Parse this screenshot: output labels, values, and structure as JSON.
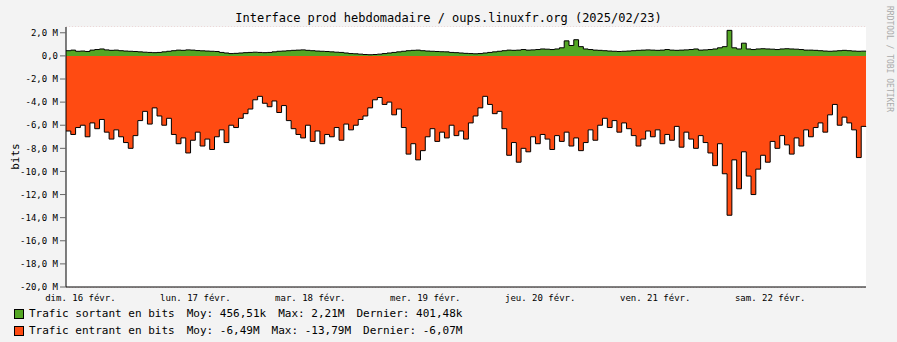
{
  "chart_data": {
    "type": "area",
    "title": "Interface prod hebdomadaire / oups.linuxfr.org (2025/02/23)",
    "y_label": "bits",
    "watermark": "RRDTOOL / TOBI OETIKER",
    "categories": [
      null,
      null,
      null,
      "dim. 16 févr.",
      null,
      null,
      null,
      null,
      null,
      null,
      null,
      null,
      null,
      null,
      null,
      null,
      null,
      null,
      null,
      null,
      null,
      null,
      null,
      null,
      null,
      null,
      null,
      "lun. 17 févr.",
      null,
      null,
      null,
      null,
      null,
      null,
      null,
      null,
      null,
      null,
      null,
      null,
      null,
      null,
      null,
      null,
      null,
      null,
      null,
      null,
      null,
      null,
      null,
      "mar. 18 févr.",
      null,
      null,
      null,
      null,
      null,
      null,
      null,
      null,
      null,
      null,
      null,
      null,
      null,
      null,
      null,
      null,
      null,
      null,
      null,
      null,
      null,
      null,
      null,
      "mer. 19 févr.",
      null,
      null,
      null,
      null,
      null,
      null,
      null,
      null,
      null,
      null,
      null,
      null,
      null,
      null,
      null,
      null,
      null,
      null,
      null,
      null,
      null,
      null,
      null,
      "jeu. 20 févr.",
      null,
      null,
      null,
      null,
      null,
      null,
      null,
      null,
      null,
      null,
      null,
      null,
      null,
      null,
      null,
      null,
      null,
      null,
      null,
      null,
      null,
      null,
      null,
      "ven. 21 févr.",
      null,
      null,
      null,
      null,
      null,
      null,
      null,
      null,
      null,
      null,
      null,
      null,
      null,
      null,
      null,
      null,
      null,
      null,
      null,
      null,
      null,
      null,
      null,
      "sam. 22 févr.",
      null,
      null,
      null,
      null,
      null,
      null,
      null,
      null,
      null,
      null,
      null,
      null,
      null,
      null,
      null,
      null,
      null,
      null,
      null,
      null
    ],
    "series": [
      {
        "name": "Trafic sortant en bits",
        "color": "#54a624",
        "stats": [
          "Moy: 456,51k",
          "Max: 2,21M",
          "Dernier: 401,48k"
        ],
        "values": [
          0.45,
          0.5,
          0.4,
          0.42,
          0.38,
          0.5,
          0.55,
          0.6,
          0.52,
          0.48,
          0.5,
          0.45,
          0.42,
          0.4,
          0.38,
          0.35,
          0.32,
          0.3,
          0.28,
          0.3,
          0.35,
          0.4,
          0.45,
          0.5,
          0.48,
          0.52,
          0.5,
          0.46,
          0.44,
          0.42,
          0.4,
          0.38,
          0.3,
          0.25,
          0.2,
          0.22,
          0.25,
          0.28,
          0.3,
          0.32,
          0.3,
          0.28,
          0.3,
          0.35,
          0.4,
          0.42,
          0.45,
          0.48,
          0.5,
          0.52,
          0.48,
          0.45,
          0.42,
          0.4,
          0.38,
          0.35,
          0.32,
          0.3,
          0.25,
          0.2,
          0.18,
          0.15,
          0.12,
          0.1,
          0.12,
          0.15,
          0.2,
          0.25,
          0.3,
          0.35,
          0.4,
          0.45,
          0.48,
          0.5,
          0.45,
          0.42,
          0.4,
          0.38,
          0.36,
          0.35,
          0.3,
          0.28,
          0.25,
          0.22,
          0.2,
          0.18,
          0.2,
          0.25,
          0.3,
          0.35,
          0.4,
          0.45,
          0.5,
          0.48,
          0.5,
          0.55,
          0.5,
          0.52,
          0.55,
          0.6,
          0.58,
          0.55,
          0.6,
          0.7,
          1.3,
          0.9,
          1.4,
          0.8,
          0.6,
          0.55,
          0.5,
          0.48,
          0.45,
          0.42,
          0.4,
          0.38,
          0.4,
          0.42,
          0.45,
          0.48,
          0.5,
          0.52,
          0.5,
          0.48,
          0.5,
          0.55,
          0.5,
          0.48,
          0.5,
          0.52,
          0.55,
          0.6,
          0.5,
          0.52,
          0.55,
          0.6,
          0.7,
          0.8,
          2.21,
          0.7,
          0.6,
          1.1,
          0.6,
          0.55,
          0.6,
          0.62,
          0.6,
          0.58,
          0.55,
          0.6,
          0.62,
          0.6,
          0.58,
          0.55,
          0.5,
          0.5,
          0.48,
          0.45,
          0.42,
          0.4,
          0.42,
          0.45,
          0.48,
          0.45,
          0.42,
          0.4,
          0.41,
          0.40148
        ]
      },
      {
        "name": "Trafic entrant en bits",
        "color": "#ff4b12",
        "stats": [
          "Moy: -6,49M",
          "Max: -13,79M",
          "Dernier: -6,07M"
        ],
        "values": [
          -6.5,
          -6.8,
          -6.2,
          -6.0,
          -7.0,
          -5.8,
          -6.3,
          -5.5,
          -6.6,
          -7.2,
          -6.4,
          -7.0,
          -7.5,
          -8.0,
          -6.9,
          -5.6,
          -4.8,
          -5.9,
          -4.5,
          -5.2,
          -6.0,
          -5.4,
          -6.8,
          -7.6,
          -7.1,
          -8.4,
          -7.3,
          -6.6,
          -7.8,
          -7.2,
          -8.1,
          -7.0,
          -6.4,
          -7.5,
          -6.0,
          -6.2,
          -5.4,
          -5.0,
          -4.6,
          -3.8,
          -3.5,
          -4.1,
          -4.4,
          -3.9,
          -4.9,
          -4.3,
          -5.6,
          -6.3,
          -6.8,
          -7.1,
          -6.0,
          -7.4,
          -6.5,
          -7.6,
          -6.8,
          -7.0,
          -6.2,
          -7.3,
          -5.9,
          -6.4,
          -6.0,
          -5.5,
          -5.2,
          -4.5,
          -3.8,
          -3.6,
          -4.2,
          -4.0,
          -5.1,
          -4.6,
          -6.2,
          -8.5,
          -7.6,
          -9.0,
          -8.2,
          -7.0,
          -6.3,
          -7.4,
          -6.6,
          -7.1,
          -6.0,
          -6.9,
          -6.5,
          -7.2,
          -5.8,
          -5.2,
          -4.5,
          -3.5,
          -4.2,
          -5.0,
          -4.8,
          -6.3,
          -8.6,
          -7.5,
          -9.2,
          -8.0,
          -8.3,
          -7.0,
          -7.6,
          -6.8,
          -7.2,
          -8.1,
          -6.9,
          -7.4,
          -6.6,
          -7.8,
          -7.1,
          -8.2,
          -7.5,
          -6.4,
          -7.3,
          -6.0,
          -5.4,
          -6.2,
          -5.6,
          -6.6,
          -5.8,
          -6.3,
          -6.9,
          -7.8,
          -7.2,
          -6.5,
          -7.0,
          -6.4,
          -7.6,
          -6.8,
          -7.3,
          -6.1,
          -7.9,
          -6.6,
          -7.2,
          -8.0,
          -6.9,
          -7.5,
          -8.4,
          -9.5,
          -7.6,
          -10.2,
          -13.79,
          -9.0,
          -11.5,
          -8.3,
          -10.4,
          -12.0,
          -9.8,
          -8.6,
          -9.2,
          -7.4,
          -8.0,
          -6.9,
          -7.7,
          -8.5,
          -7.1,
          -7.8,
          -6.4,
          -7.0,
          -6.2,
          -5.8,
          -6.6,
          -5.1,
          -4.2,
          -6.0,
          -5.3,
          -5.8,
          -6.4,
          -8.8,
          -6.1,
          -6.07
        ]
      }
    ],
    "ylim": [
      -20,
      2.5
    ],
    "yticks": [
      {
        "value": -20,
        "label": "-20,0 M"
      },
      {
        "value": -18,
        "label": "-18,0 M"
      },
      {
        "value": -16,
        "label": "-16,0 M"
      },
      {
        "value": -14,
        "label": "-14,0 M"
      },
      {
        "value": -12,
        "label": "-12,0 M"
      },
      {
        "value": -10,
        "label": "-10,0 M"
      },
      {
        "value": -8,
        "label": "-8,0 M"
      },
      {
        "value": -6,
        "label": "-6,0 M"
      },
      {
        "value": -4,
        "label": "-4,0 M"
      },
      {
        "value": -2,
        "label": "-2,0 M"
      },
      {
        "value": 0,
        "label": "0,0"
      },
      {
        "value": 2,
        "label": "2,0 M"
      }
    ],
    "grid": true,
    "legend": "bottom"
  }
}
